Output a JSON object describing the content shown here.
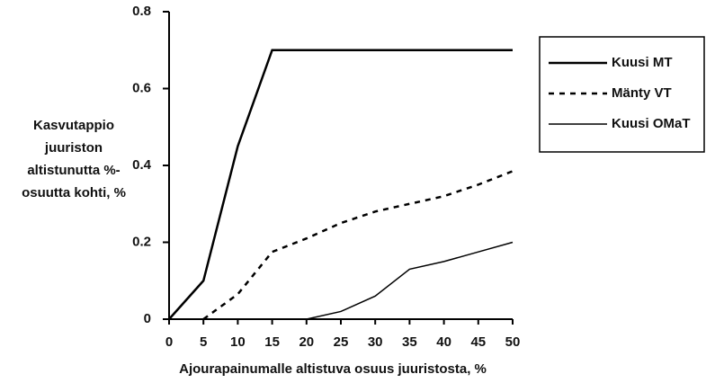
{
  "chart_data": {
    "type": "line",
    "xlabel": "Ajourapainumalle altistuva osuus juuristosta, %",
    "ylabel": [
      "Kasvutappio",
      "juuriston",
      "altistunutta %-",
      "osuutta kohti, %"
    ],
    "x": [
      0,
      5,
      10,
      15,
      20,
      25,
      30,
      35,
      40,
      45,
      50
    ],
    "series": [
      {
        "name": "Kuusi MT",
        "color": "#000000",
        "linestyle": "solid",
        "linewidth": 2.5,
        "values": [
          0,
          0.1,
          0.45,
          0.7,
          0.7,
          0.7,
          0.7,
          0.7,
          0.7,
          0.7,
          0.7
        ]
      },
      {
        "name": "Mänty VT",
        "color": "#000000",
        "linestyle": "dashed",
        "linewidth": 2.5,
        "values": [
          null,
          0,
          0.065,
          0.175,
          0.21,
          0.25,
          0.28,
          0.3,
          0.32,
          0.35,
          0.385
        ]
      },
      {
        "name": "Kuusi OMaT",
        "color": "#000000",
        "linestyle": "solid",
        "linewidth": 1.5,
        "values": [
          null,
          null,
          null,
          null,
          0,
          0.02,
          0.06,
          0.13,
          0.15,
          0.175,
          0.2
        ]
      }
    ],
    "xlim": [
      0,
      50
    ],
    "xticks": [
      0,
      5,
      10,
      15,
      20,
      25,
      30,
      35,
      40,
      45,
      50
    ],
    "ylim": [
      0,
      0.8
    ],
    "yticks": [
      0,
      0.2,
      0.4,
      0.6,
      0.8
    ],
    "grid": false,
    "legend": "right"
  }
}
